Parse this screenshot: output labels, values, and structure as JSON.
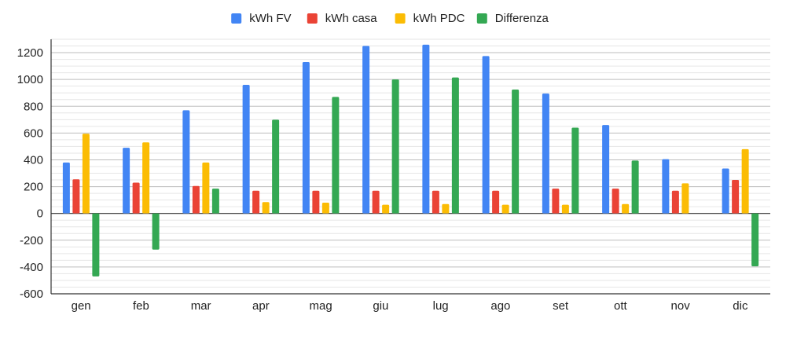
{
  "chart_data": {
    "type": "bar",
    "categories": [
      "gen",
      "feb",
      "mar",
      "apr",
      "mag",
      "giu",
      "lug",
      "ago",
      "set",
      "ott",
      "nov",
      "dic"
    ],
    "series": [
      {
        "name": "kWh FV",
        "color": "#4285F4",
        "values": [
          380,
          490,
          770,
          960,
          1130,
          1250,
          1260,
          1175,
          895,
          660,
          405,
          335
        ]
      },
      {
        "name": "kWh casa",
        "color": "#EA4335",
        "values": [
          255,
          230,
          205,
          170,
          170,
          170,
          170,
          170,
          185,
          185,
          170,
          250
        ]
      },
      {
        "name": "kWh PDC",
        "color": "#FBBC04",
        "values": [
          595,
          530,
          380,
          85,
          80,
          65,
          70,
          65,
          65,
          70,
          225,
          480
        ]
      },
      {
        "name": "Differenza",
        "color": "#34A853",
        "values": [
          -470,
          -270,
          185,
          700,
          870,
          1000,
          1015,
          925,
          640,
          395,
          0,
          -395
        ]
      }
    ],
    "ylim": [
      -600,
      1300
    ],
    "yticks": [
      -600,
      -400,
      -200,
      0,
      200,
      400,
      600,
      800,
      1000,
      1200
    ],
    "grid": true,
    "legend_position": "top"
  }
}
